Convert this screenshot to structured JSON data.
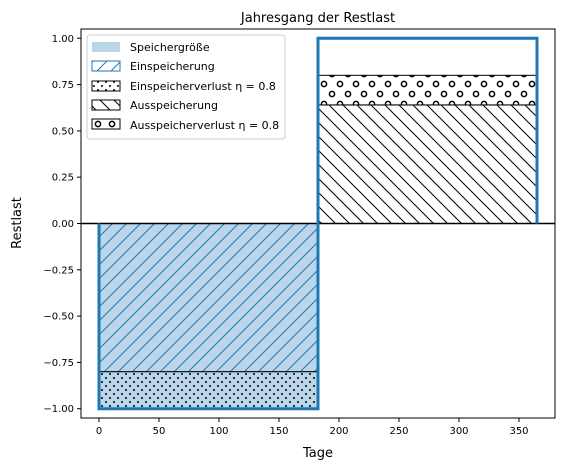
{
  "chart_data": {
    "type": "area",
    "title": "Jahresgang der Restlast",
    "xlabel": "Tage",
    "ylabel": "Restlast",
    "xlim": [
      -15,
      380
    ],
    "ylim": [
      -1.05,
      1.05
    ],
    "xticks": [
      0,
      50,
      100,
      150,
      200,
      250,
      300,
      350
    ],
    "yticks": [
      -1.0,
      -0.75,
      -0.5,
      -0.25,
      0.0,
      0.25,
      0.5,
      0.75,
      1.0
    ],
    "xtick_labels": [
      "0",
      "50",
      "100",
      "150",
      "200",
      "250",
      "300",
      "350"
    ],
    "ytick_labels": [
      "−1.00",
      "−0.75",
      "−0.50",
      "−0.25",
      "0.00",
      "0.25",
      "0.50",
      "0.75",
      "1.00"
    ],
    "grid": false,
    "legend_position": "top-left",
    "series": [
      {
        "name": "Speichergröße",
        "kind": "step-outline",
        "color": "#1f77b4",
        "x": [
          0,
          0,
          182.5,
          182.5,
          365,
          365
        ],
        "y": [
          0,
          -1.0,
          -1.0,
          1.0,
          1.0,
          0
        ]
      },
      {
        "name": "Einspeicherung",
        "kind": "fill",
        "pattern": "diagonal-forward",
        "color": "#1f77b4",
        "x_range": [
          0,
          182.5
        ],
        "y_range": [
          -0.8,
          0.0
        ]
      },
      {
        "name": "Einspeicherverlust η = 0.8",
        "kind": "fill",
        "pattern": "small-dots",
        "color": "#000000",
        "x_range": [
          0,
          182.5
        ],
        "y_range": [
          -1.0,
          -0.8
        ]
      },
      {
        "name": "Ausspeicherung",
        "kind": "fill",
        "pattern": "diagonal-backward",
        "color": "#000000",
        "x_range": [
          182.5,
          365
        ],
        "y_range": [
          0.0,
          0.64
        ]
      },
      {
        "name": "Ausspeicherverlust η = 0.8",
        "kind": "fill",
        "pattern": "circles",
        "color": "#000000",
        "x_range": [
          182.5,
          365
        ],
        "y_range": [
          0.64,
          0.8
        ]
      }
    ],
    "hline": {
      "y": 0.0,
      "color": "#000000"
    }
  }
}
